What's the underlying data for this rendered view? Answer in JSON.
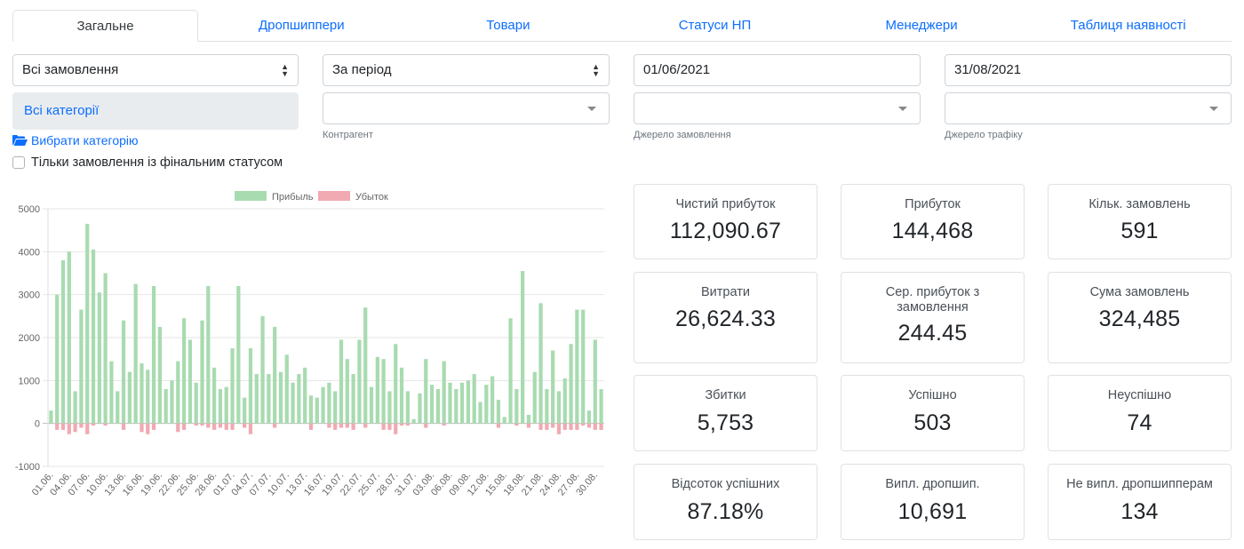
{
  "tabs": [
    {
      "label": "Загальне",
      "active": true
    },
    {
      "label": "Дропшиппери",
      "active": false
    },
    {
      "label": "Товари",
      "active": false
    },
    {
      "label": "Статуси НП",
      "active": false
    },
    {
      "label": "Менеджери",
      "active": false
    },
    {
      "label": "Таблиця наявності",
      "active": false
    }
  ],
  "filters": {
    "orders_select": "Всі замовлення",
    "period_select": "За період",
    "date_from": "01/06/2021",
    "date_to": "31/08/2021",
    "counterparty_label": "Контрагент",
    "order_source_label": "Джерело замовлення",
    "traffic_source_label": "Джерело трафіку",
    "categories_selected": "Всі категорії",
    "choose_category_link": "Вибрати категорію",
    "final_status_checkbox": "Тільки замовлення із фінальним статусом"
  },
  "chart_data": {
    "type": "bar",
    "legend": [
      "Прибыль",
      "Убыток"
    ],
    "legend_position": "top",
    "colors": {
      "profit": "#a8dbb0",
      "loss": "#f1a9b2"
    },
    "ylim": [
      -1000,
      5000
    ],
    "yticks": [
      5000,
      4000,
      3000,
      2000,
      1000,
      0,
      -1000
    ],
    "xtick_labels": [
      "01.06.",
      "04.06.",
      "07.06.",
      "10.06.",
      "13.06.",
      "16.06.",
      "19.06.",
      "22.06.",
      "25.06.",
      "28.06.",
      "01.07.",
      "04.07.",
      "07.07.",
      "10.07.",
      "13.07.",
      "16.07.",
      "19.07.",
      "22.07.",
      "25.07.",
      "28.07.",
      "31.07.",
      "03.08.",
      "06.08.",
      "09.08.",
      "12.08.",
      "15.08.",
      "18.08.",
      "21.08.",
      "24.08.",
      "27.08.",
      "30.08."
    ],
    "profit": [
      300,
      3000,
      3800,
      4000,
      750,
      2650,
      4650,
      4050,
      3050,
      3500,
      1450,
      750,
      2400,
      1200,
      3250,
      1400,
      1250,
      3200,
      2250,
      800,
      1000,
      1450,
      2450,
      1950,
      950,
      2400,
      3200,
      1300,
      800,
      850,
      1750,
      3200,
      600,
      1750,
      1150,
      2500,
      1150,
      2250,
      1200,
      1600,
      950,
      1150,
      1300,
      650,
      600,
      850,
      950,
      750,
      1950,
      1500,
      1150,
      1950,
      2700,
      850,
      1550,
      1500,
      750,
      1850,
      1300,
      750,
      100,
      700,
      1500,
      900,
      800,
      1450,
      950,
      800,
      950,
      1000,
      1150,
      500,
      900,
      1100,
      550,
      150,
      2450,
      800,
      3550,
      200,
      1200,
      2800,
      800,
      1700,
      750,
      1050,
      1850,
      2650,
      2650,
      300,
      1950,
      800
    ],
    "loss": [
      0,
      -150,
      -150,
      -250,
      -200,
      -100,
      -250,
      -50,
      0,
      -50,
      0,
      0,
      -150,
      0,
      0,
      -200,
      -250,
      -150,
      0,
      0,
      0,
      -200,
      -150,
      0,
      -50,
      -50,
      -100,
      -150,
      -100,
      -150,
      -150,
      0,
      -100,
      -250,
      0,
      0,
      0,
      -100,
      0,
      0,
      0,
      0,
      0,
      -150,
      0,
      0,
      -100,
      -150,
      -100,
      -100,
      -150,
      0,
      -100,
      0,
      0,
      -150,
      -150,
      -250,
      -50,
      -50,
      0,
      0,
      -100,
      0,
      0,
      -50,
      0,
      0,
      0,
      0,
      0,
      0,
      0,
      0,
      -100,
      0,
      0,
      -50,
      0,
      -100,
      0,
      -150,
      -150,
      -100,
      -250,
      -150,
      -150,
      -150,
      -50,
      -100,
      -150,
      -150
    ]
  },
  "stats": [
    {
      "label": "Чистий прибуток",
      "value": "112,090.67"
    },
    {
      "label": "Прибуток",
      "value": "144,468"
    },
    {
      "label": "Кільк. замовлень",
      "value": "591"
    },
    {
      "label": "Витрати",
      "value": "26,624.33"
    },
    {
      "label": "Сер. прибуток з замовлення",
      "value": "244.45"
    },
    {
      "label": "Сума замовлень",
      "value": "324,485"
    },
    {
      "label": "Збитки",
      "value": "5,753"
    },
    {
      "label": "Успішно",
      "value": "503"
    },
    {
      "label": "Неуспішно",
      "value": "74"
    },
    {
      "label": "Відсоток успішних",
      "value": "87.18%"
    },
    {
      "label": "Випл. дропшип.",
      "value": "10,691"
    },
    {
      "label": "Не випл. дропшипперам",
      "value": "134"
    }
  ]
}
